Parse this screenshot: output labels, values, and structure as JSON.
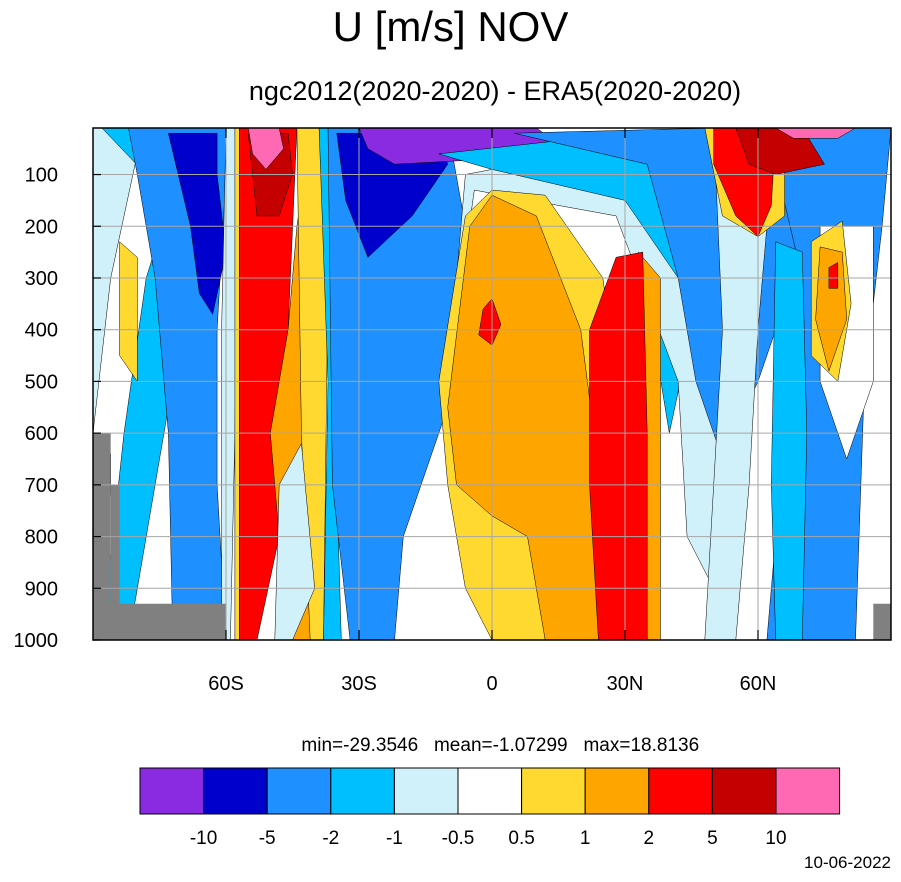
{
  "chart_data": {
    "type": "heatmap",
    "title": "U [m/s] NOV",
    "subtitle": "ngc2012(2020-2020) - ERA5(2020-2020)",
    "x_ticks": [
      {
        "lat": -60,
        "label": "60S"
      },
      {
        "lat": -30,
        "label": "30S"
      },
      {
        "lat": 0,
        "label": "0"
      },
      {
        "lat": 30,
        "label": "30N"
      },
      {
        "lat": 60,
        "label": "60N"
      }
    ],
    "xlim": [
      -90,
      90
    ],
    "y_ticks": [
      100,
      200,
      300,
      400,
      500,
      600,
      700,
      800,
      900,
      1000
    ],
    "ylim": [
      10,
      1000
    ],
    "y_axis_reversed": true,
    "stats": {
      "min": "min=-29.3546",
      "mean": "mean=-1.07299",
      "max": "max=18.8136"
    },
    "date": "10-06-2022",
    "colorbar": {
      "labels": [
        "-10",
        "-5",
        "-2",
        "-1",
        "-0.5",
        "0.5",
        "1",
        "2",
        "5",
        "10"
      ],
      "colors": [
        "#8a2be2",
        "#0000cd",
        "#1e90ff",
        "#00bfff",
        "#d0f0fa",
        "#ffffff",
        "#ffd92f",
        "#ffa500",
        "#ff0000",
        "#c40000",
        "#ff69b4"
      ]
    },
    "missing_color": "#808080",
    "field": {
      "description": "approximate zonal wind difference field, colored by level class index 0..10",
      "regions": [
        {
          "lat_range": [
            -90,
            -80
          ],
          "p_range": [
            10,
            1000
          ],
          "class": 4
        },
        {
          "lat_range": [
            -80,
            -65
          ],
          "p_range": [
            10,
            1000
          ],
          "class": 2
        },
        {
          "lat_range": [
            -73,
            -62
          ],
          "p_range": [
            30,
            370
          ],
          "class": 1
        },
        {
          "lat_range": [
            -58,
            -48
          ],
          "p_range": [
            10,
            1000
          ],
          "class": 8
        },
        {
          "lat_range": [
            -56,
            -49
          ],
          "p_range": [
            10,
            180
          ],
          "class": 10
        },
        {
          "lat_range": [
            -47,
            -40
          ],
          "p_range": [
            10,
            1000
          ],
          "class": 7
        },
        {
          "lat_range": [
            -35,
            -12
          ],
          "p_range": [
            10,
            1000
          ],
          "class": 2
        },
        {
          "lat_range": [
            -32,
            -18
          ],
          "p_range": [
            10,
            250
          ],
          "class": 1
        },
        {
          "lat_range": [
            -25,
            10
          ],
          "p_range": [
            10,
            70
          ],
          "class": 0
        },
        {
          "lat_range": [
            -8,
            10
          ],
          "p_range": [
            130,
            800
          ],
          "class": 7
        },
        {
          "lat_range": [
            22,
            38
          ],
          "p_range": [
            250,
            1000
          ],
          "class": 8
        },
        {
          "lat_range": [
            47,
            62
          ],
          "p_range": [
            10,
            180
          ],
          "class": 8
        },
        {
          "lat_range": [
            69,
            80
          ],
          "p_range": [
            200,
            470
          ],
          "class": 7
        }
      ]
    }
  }
}
